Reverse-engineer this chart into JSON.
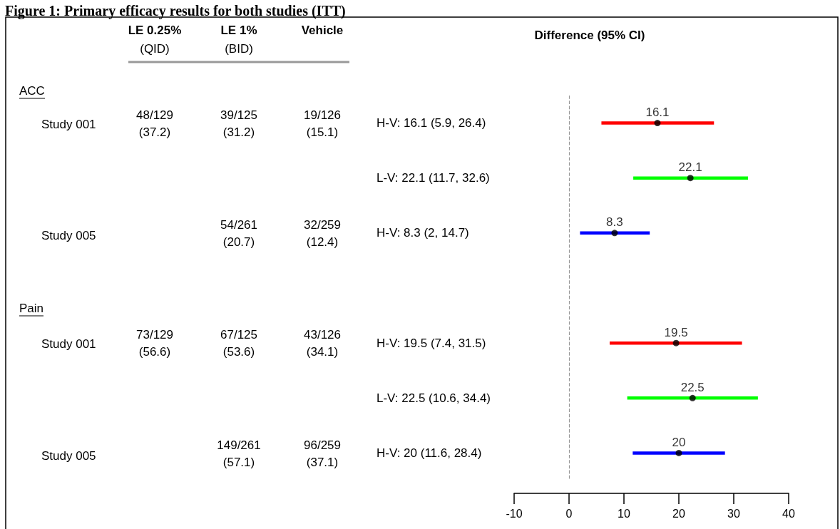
{
  "chart_data": {
    "type": "bar",
    "orientation": "horizontal",
    "title": "Figure 1: Primary efficacy results for both studies (ITT)",
    "categories": [
      "H-V: 16.1 (5.9, 26.4)",
      "L-V: 22.1 (11.7, 32.6)",
      "H-V: 8.3 (2, 14.7)",
      null,
      "H-V: 19.5 (7.4, 31.5)",
      "L-V: 22.5 (10.6, 34.4)",
      "H-V: 20 (11.6, 28.4)"
    ],
    "series": [
      {
        "base": [
          5.9,
          11.7,
          2,
          null,
          7.4,
          10.6,
          11.6
        ],
        "values": [
          20.5,
          20.9,
          12.7,
          null,
          24.1,
          23.8,
          16.8
        ],
        "colors": [
          "#ff0000",
          "#00ff00",
          "#0000ff",
          null,
          "#ff0000",
          "#00ff00",
          "#0000ff"
        ]
      },
      {
        "type": "scatter",
        "color": "#000000",
        "values": [
          16.1,
          22.1,
          8.3,
          null,
          19.5,
          22.5,
          20
        ],
        "value_labels": [
          "16.1",
          "22.1",
          "8.3",
          null,
          "19.5",
          "22.5",
          "20"
        ]
      }
    ],
    "xlim": [
      -10,
      40
    ],
    "xticks": [
      -10,
      0,
      10,
      20,
      30,
      40
    ],
    "ref_lines": [
      {
        "axis": "x",
        "value": 0,
        "color": "#999999",
        "line_style": "dashed"
      }
    ],
    "marker": "circle",
    "annotations": [
      "LE 0.25%",
      "(QID)",
      "LE 1%",
      "(BID)",
      "Vehicle",
      "Difference (95% CI)",
      "ACC",
      "Pain",
      "Study 001",
      "Study 005",
      "Study 001",
      "Study 005",
      "48/129\n(37.2)",
      "39/125\n(31.2)",
      "19/126\n(15.1)",
      "54/261\n(20.7)",
      "32/259\n(12.4)",
      "73/129\n(56.6)",
      "67/125\n(53.6)",
      "43/126\n(34.1)",
      "149/261\n(57.1)",
      "96/259\n(37.1)"
    ]
  }
}
